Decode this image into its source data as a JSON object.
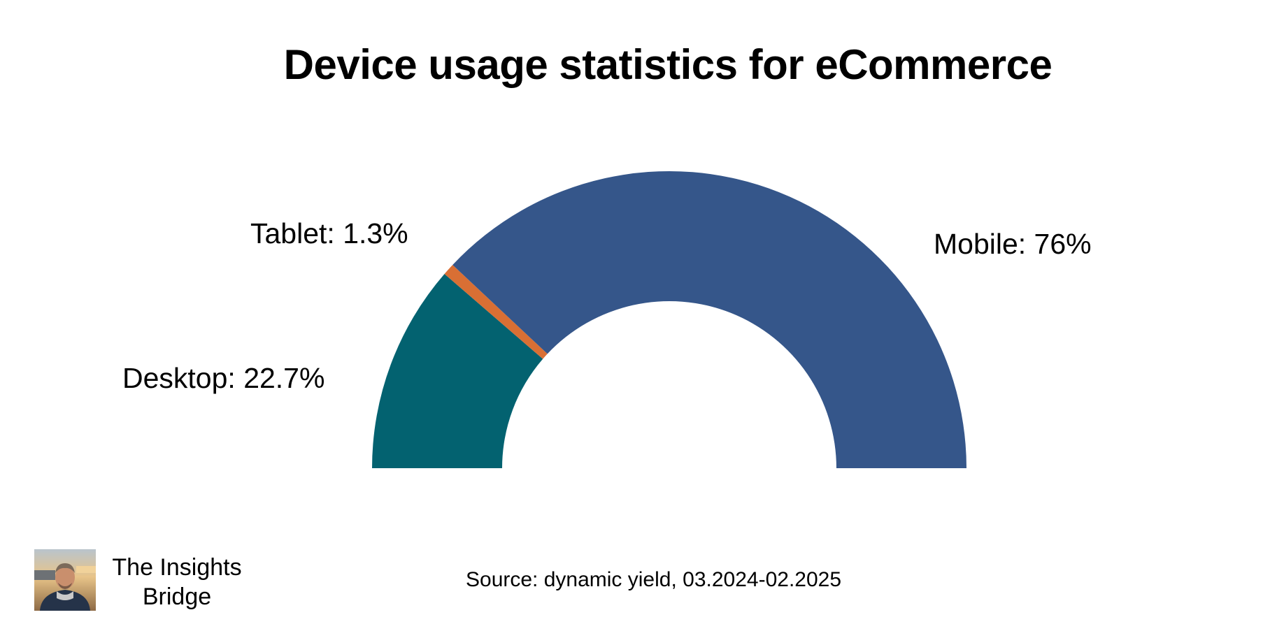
{
  "chart_data": {
    "type": "pie",
    "style": "half-donut",
    "title": "Device usage statistics for eCommerce",
    "slices": [
      {
        "name": "Desktop",
        "value": 22.7,
        "label": "Desktop: 22.7%",
        "color": "#036270"
      },
      {
        "name": "Tablet",
        "value": 1.3,
        "label": "Tablet: 1.3%",
        "color": "#D96F34"
      },
      {
        "name": "Mobile",
        "value": 76,
        "label": "Mobile: 76%",
        "color": "#35568A"
      }
    ]
  },
  "footer": {
    "source": "Source: dynamic yield, 03.2024-02.2025",
    "brand_line1": "The Insights",
    "brand_line2": "Bridge",
    "brand_photo_icon": "profile-photo"
  }
}
